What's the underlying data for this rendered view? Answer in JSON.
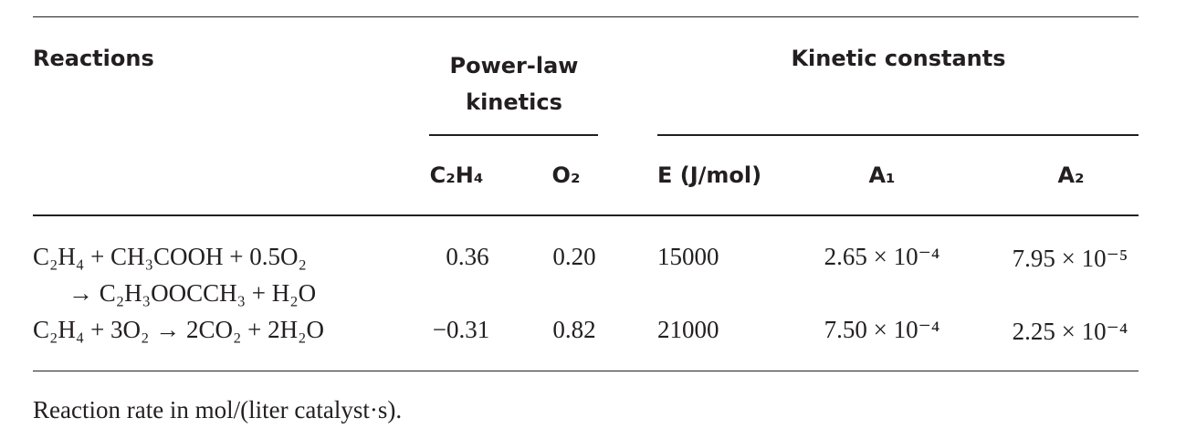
{
  "header": {
    "reactions": "Reactions",
    "power_law": "Power-law kinetics",
    "kinetic_constants": "Kinetic constants",
    "subheaders": [
      "C₂H₄",
      "O₂",
      "E (J/mol)",
      "A₁",
      "A₂"
    ]
  },
  "table": {
    "rows": [
      {
        "reaction": [
          "C₂H₄ + CH₃COOH + 0.5O₂",
          "→ C₂H₃OOCCH₃ + H₂O"
        ],
        "cells": [
          "0.36",
          "0.20",
          "15000",
          "2.65 × 10⁻⁴",
          "7.95 × 10⁻⁵"
        ]
      },
      {
        "reaction": [
          "C₂H₄ + 3O₂ → 2CO₂ + 2H₂O"
        ],
        "cells": [
          "−0.31",
          "0.82",
          "21000",
          "7.50 × 10⁻⁴",
          "2.25 × 10⁻⁴"
        ]
      }
    ]
  },
  "footnote": "Reaction rate in mol/(liter catalyst·s)."
}
